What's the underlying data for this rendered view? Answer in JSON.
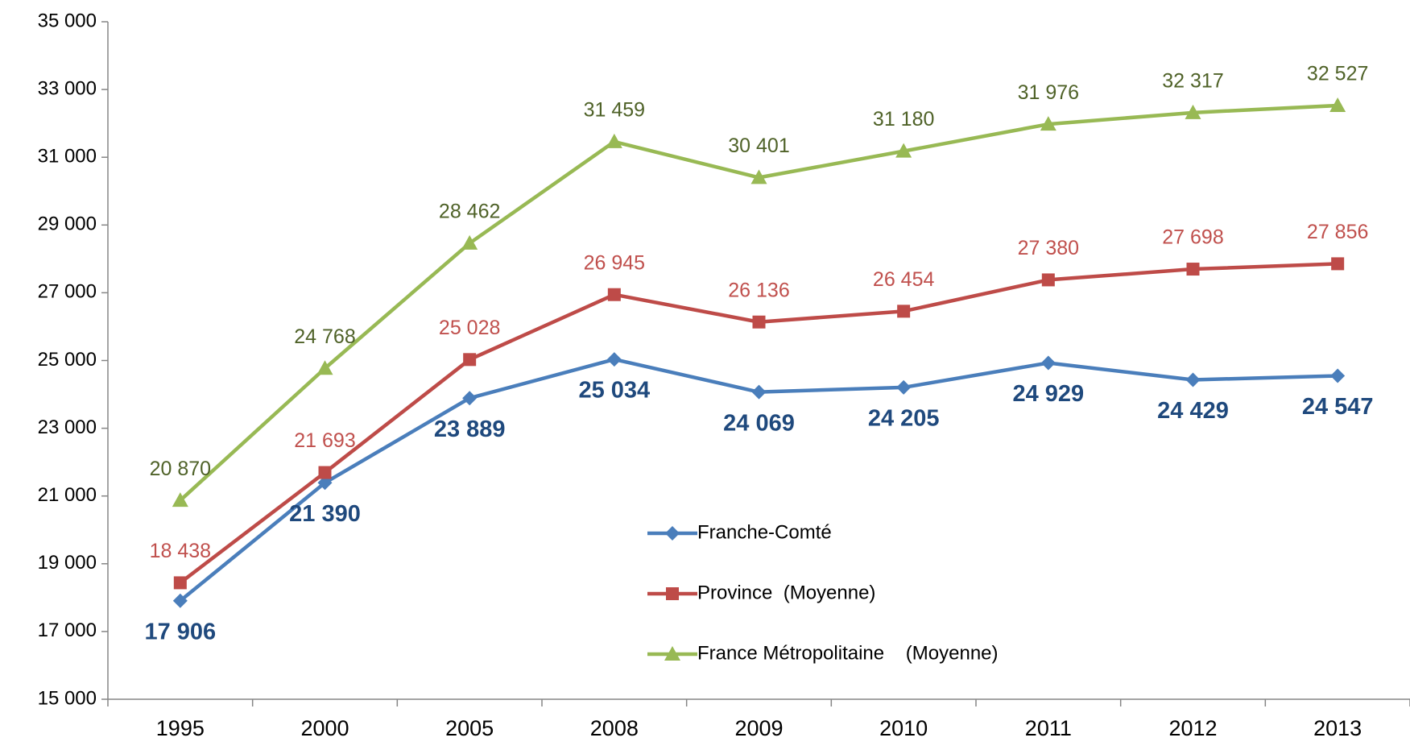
{
  "chart_data": {
    "type": "line",
    "categories": [
      "1995",
      "2000",
      "2005",
      "2008",
      "2009",
      "2010",
      "2011",
      "2012",
      "2013"
    ],
    "series": [
      {
        "name": "Franche-Comté",
        "color": "#4a7ebb",
        "label_color": "#1f497d",
        "marker": "diamond",
        "values": [
          17906,
          21390,
          23889,
          25034,
          24069,
          24205,
          24929,
          24429,
          24547
        ],
        "value_labels": [
          "17 906",
          "21 390",
          "23 889",
          "25 034",
          "24 069",
          "24 205",
          "24 929",
          "24 429",
          "24 547"
        ]
      },
      {
        "name": "Province  (Moyenne)",
        "color": "#be4b48",
        "label_color": "#c0504d",
        "marker": "square",
        "values": [
          18438,
          21693,
          25028,
          26945,
          26136,
          26454,
          27380,
          27698,
          27856
        ],
        "value_labels": [
          "18 438",
          "21 693",
          "25 028",
          "26 945",
          "26 136",
          "26 454",
          "27 380",
          "27 698",
          "27 856"
        ]
      },
      {
        "name": "France Métropolitaine    (Moyenne)",
        "color": "#98b954",
        "label_color": "#4f6228",
        "marker": "triangle",
        "values": [
          20870,
          24768,
          28462,
          31459,
          30401,
          31180,
          31976,
          32317,
          32527
        ],
        "value_labels": [
          "20 870",
          "24 768",
          "28 462",
          "31 459",
          "30 401",
          "31 180",
          "31 976",
          "32 317",
          "32 527"
        ]
      }
    ],
    "ylim": [
      15000,
      35000
    ],
    "yticks": [
      {
        "value": 15000,
        "label": "15 000"
      },
      {
        "value": 17000,
        "label": "17 000"
      },
      {
        "value": 19000,
        "label": "19 000"
      },
      {
        "value": 21000,
        "label": "21 000"
      },
      {
        "value": 23000,
        "label": "23 000"
      },
      {
        "value": 25000,
        "label": "25 000"
      },
      {
        "value": 27000,
        "label": "27 000"
      },
      {
        "value": 29000,
        "label": "29 000"
      },
      {
        "value": 31000,
        "label": "31 000"
      },
      {
        "value": 33000,
        "label": "33 000"
      },
      {
        "value": 35000,
        "label": "35 000"
      }
    ],
    "grid": false
  }
}
